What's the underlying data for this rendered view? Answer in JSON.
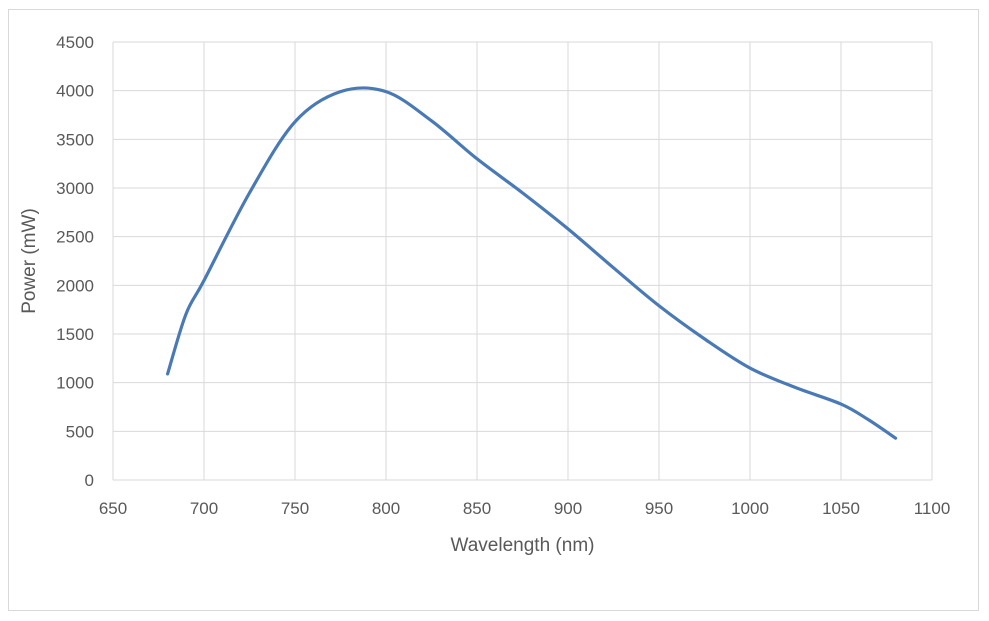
{
  "chart_data": {
    "type": "line",
    "title": "",
    "xlabel": "Wavelength (nm)",
    "ylabel": "Power (mW)",
    "xlim": [
      650,
      1100
    ],
    "ylim": [
      0,
      4500
    ],
    "x_ticks": [
      650,
      700,
      750,
      800,
      850,
      900,
      950,
      1000,
      1050,
      1100
    ],
    "y_ticks": [
      0,
      500,
      1000,
      1500,
      2000,
      2500,
      3000,
      3500,
      4000,
      4500
    ],
    "grid": true,
    "legend": "none",
    "series": [
      {
        "color": "#4a7ab5",
        "x": [
          680,
          690,
          700,
          725,
          750,
          775,
          800,
          825,
          850,
          875,
          900,
          925,
          950,
          975,
          1000,
          1025,
          1050,
          1065,
          1080
        ],
        "y": [
          1090,
          1700,
          2050,
          2950,
          3680,
          3990,
          3990,
          3690,
          3300,
          2950,
          2580,
          2180,
          1790,
          1450,
          1150,
          950,
          780,
          620,
          430
        ]
      }
    ]
  }
}
